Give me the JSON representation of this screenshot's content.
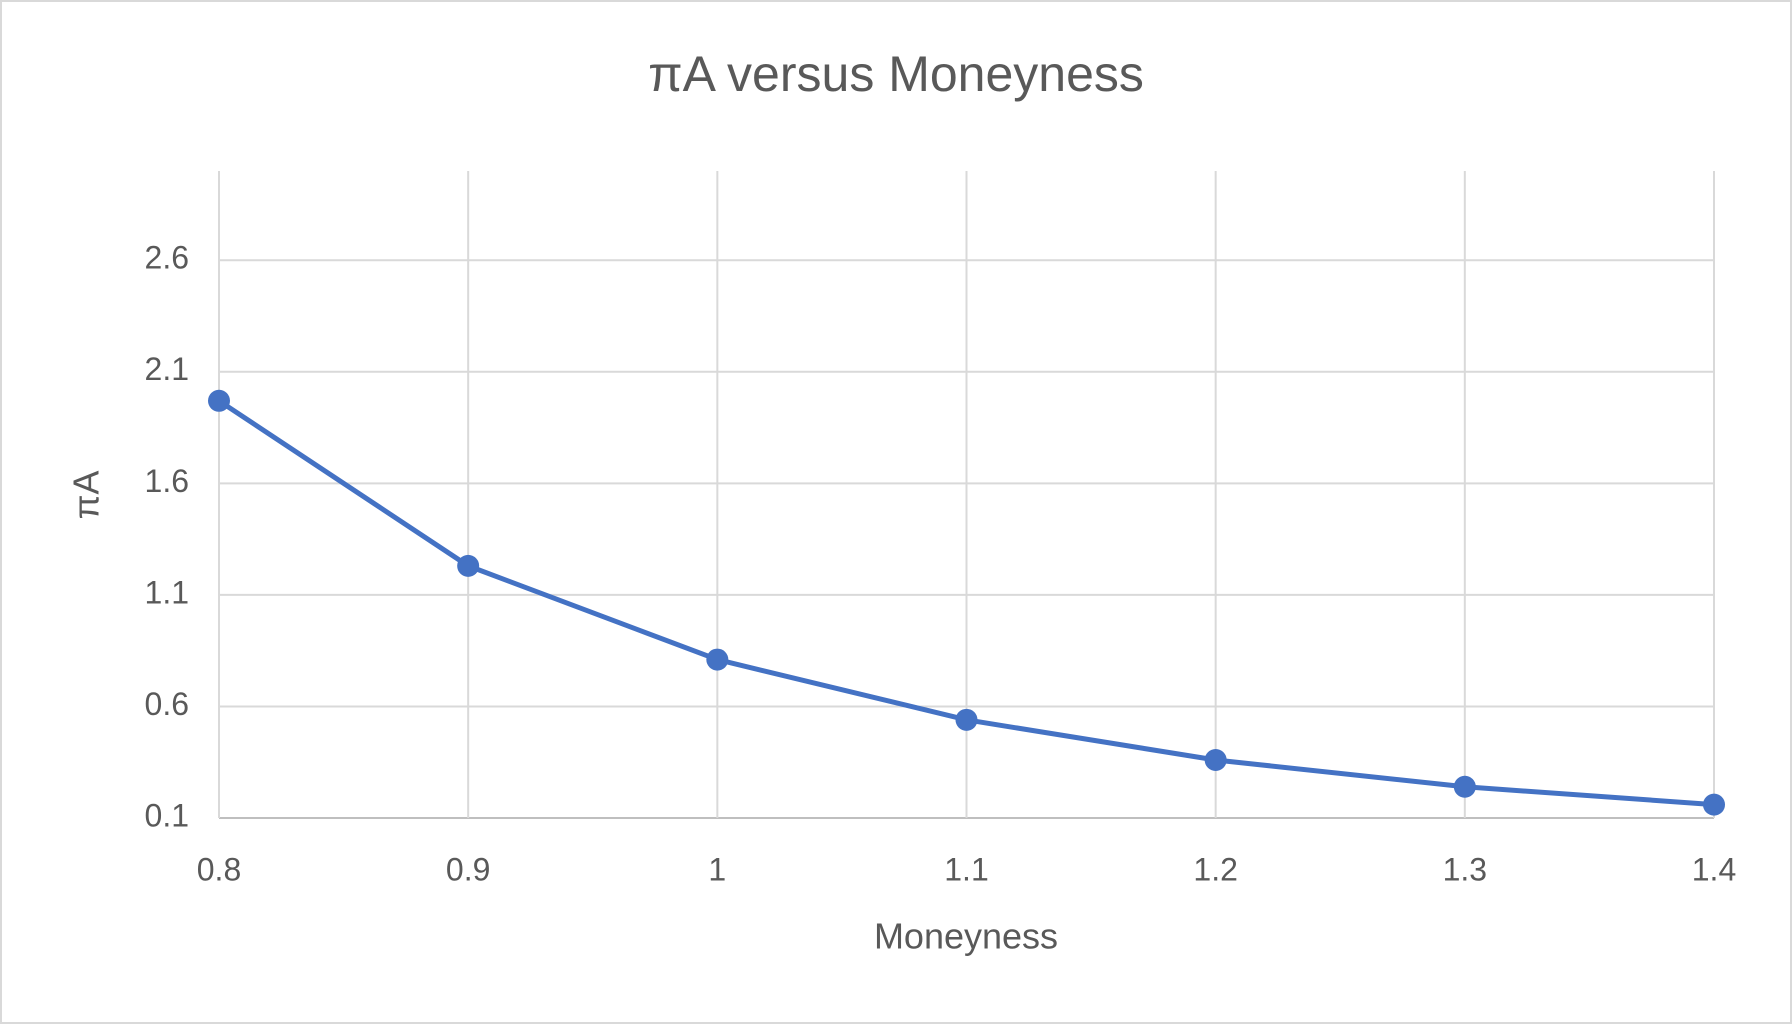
{
  "chart_data": {
    "type": "line",
    "title": "πA versus Moneyness",
    "x_label": "Moneyness",
    "y_label": "πA",
    "x": [
      0.8,
      0.9,
      1.0,
      1.1,
      1.2,
      1.3,
      1.4
    ],
    "series": [
      {
        "name": "πA",
        "color": "#4472c4",
        "values": [
          1.97,
          1.23,
          0.81,
          0.54,
          0.36,
          0.24,
          0.16
        ]
      }
    ],
    "xlim": [
      0.8,
      1.4
    ],
    "xticks": [
      0.8,
      0.9,
      1,
      1.1,
      1.2,
      1.3,
      1.4
    ],
    "ylim": [
      0.1,
      3.0
    ],
    "yticks": [
      0.1,
      0.6,
      1.1,
      1.6,
      2.1,
      2.6
    ],
    "grid": true
  }
}
